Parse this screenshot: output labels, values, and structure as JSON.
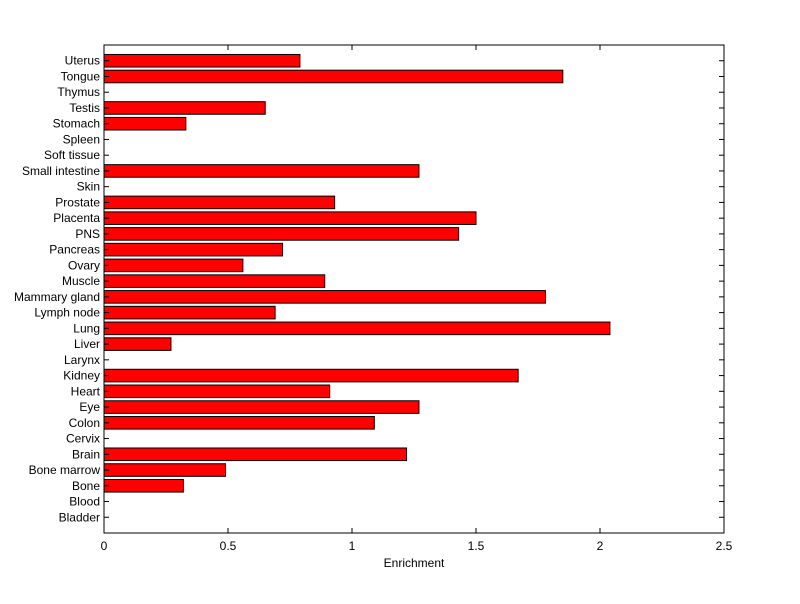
{
  "chart_data": {
    "type": "bar",
    "orientation": "horizontal",
    "categories": [
      "Bladder",
      "Blood",
      "Bone",
      "Bone marrow",
      "Brain",
      "Cervix",
      "Colon",
      "Eye",
      "Heart",
      "Kidney",
      "Larynx",
      "Liver",
      "Lung",
      "Lymph node",
      "Mammary gland",
      "Muscle",
      "Ovary",
      "Pancreas",
      "PNS",
      "Placenta",
      "Prostate",
      "Skin",
      "Small intestine",
      "Soft tissue",
      "Spleen",
      "Stomach",
      "Testis",
      "Thymus",
      "Tongue",
      "Uterus"
    ],
    "values": [
      0,
      0,
      0.32,
      0.49,
      1.22,
      0,
      1.09,
      1.27,
      0.91,
      1.67,
      0,
      0.27,
      2.04,
      0.69,
      1.78,
      0.89,
      0.56,
      0.72,
      1.43,
      1.5,
      0.93,
      0,
      1.27,
      0,
      0,
      0.33,
      0.65,
      0,
      1.85,
      0.79
    ],
    "title": "",
    "xlabel": "Enrichment",
    "ylabel": "",
    "xlim": [
      0,
      2.5
    ],
    "xticks": [
      0,
      0.5,
      1,
      1.5,
      2,
      2.5
    ],
    "xtick_labels": [
      "0",
      "0.5",
      "1",
      "1.5",
      "2",
      "2.5"
    ],
    "bar_color": "#ff0000",
    "bar_edge_color": "#000000",
    "grid": false
  }
}
